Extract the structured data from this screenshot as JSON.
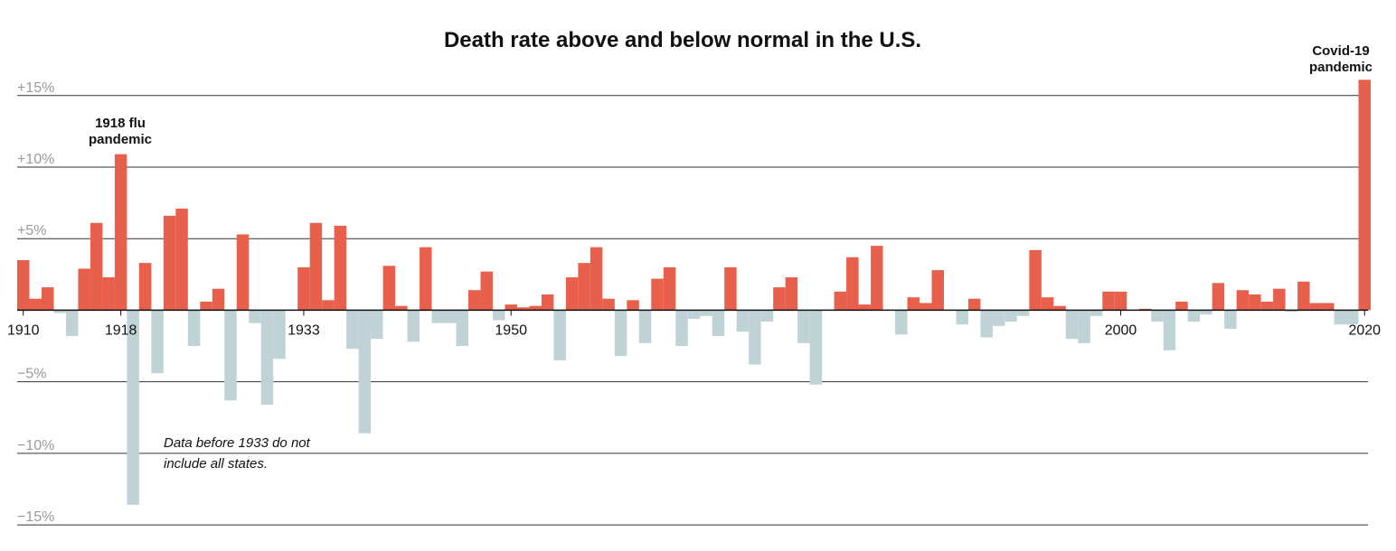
{
  "chart_data": {
    "type": "bar",
    "title": "Death rate above and below normal in the U.S.",
    "annotations": [
      [
        "1918 flu",
        "pandemic"
      ],
      [
        "Covid-19",
        "pandemic"
      ],
      [
        "Data before 1933 do not",
        "include all states."
      ]
    ],
    "x": [
      1910,
      1911,
      1912,
      1913,
      1914,
      1915,
      1916,
      1917,
      1918,
      1919,
      1920,
      1921,
      1922,
      1923,
      1924,
      1925,
      1926,
      1927,
      1928,
      1929,
      1930,
      1931,
      1932,
      1933,
      1934,
      1935,
      1936,
      1937,
      1938,
      1939,
      1940,
      1941,
      1942,
      1943,
      1944,
      1945,
      1946,
      1947,
      1948,
      1949,
      1950,
      1951,
      1952,
      1953,
      1954,
      1955,
      1956,
      1957,
      1958,
      1959,
      1960,
      1961,
      1962,
      1963,
      1964,
      1965,
      1966,
      1967,
      1968,
      1969,
      1970,
      1971,
      1972,
      1973,
      1974,
      1975,
      1976,
      1977,
      1978,
      1979,
      1980,
      1981,
      1982,
      1983,
      1984,
      1985,
      1986,
      1987,
      1988,
      1989,
      1990,
      1991,
      1992,
      1993,
      1994,
      1995,
      1996,
      1997,
      1998,
      1999,
      2000,
      2001,
      2002,
      2003,
      2004,
      2005,
      2006,
      2007,
      2008,
      2009,
      2010,
      2011,
      2012,
      2013,
      2014,
      2015,
      2016,
      2017,
      2018,
      2019,
      2020
    ],
    "values": [
      3.5,
      0.8,
      1.6,
      -0.2,
      -1.8,
      2.9,
      6.1,
      2.3,
      10.9,
      -13.6,
      3.3,
      -4.4,
      6.6,
      7.1,
      -2.5,
      0.6,
      1.5,
      -6.3,
      5.3,
      -0.9,
      -6.6,
      -3.4,
      0,
      3.0,
      6.1,
      0.7,
      5.9,
      -2.7,
      -8.6,
      -2.0,
      3.1,
      0.3,
      -2.2,
      4.4,
      -0.9,
      -0.9,
      -2.5,
      1.4,
      2.7,
      -0.7,
      0.4,
      0.2,
      0.3,
      1.1,
      -3.5,
      2.3,
      3.3,
      4.4,
      0.8,
      -3.2,
      0.7,
      -2.3,
      2.2,
      3.0,
      -2.5,
      -0.6,
      -0.4,
      -1.8,
      3.0,
      -1.5,
      -3.8,
      -0.8,
      1.6,
      2.3,
      -2.3,
      -5.2,
      0,
      1.3,
      3.7,
      0.4,
      4.5,
      0,
      -1.7,
      0.9,
      0.5,
      2.8,
      0,
      -1.0,
      0.8,
      -1.9,
      -1.1,
      -0.8,
      -0.4,
      4.2,
      0.9,
      0.3,
      -2.0,
      -2.3,
      -0.4,
      1.3,
      1.3,
      0,
      0.1,
      -0.8,
      -2.8,
      0.6,
      -0.8,
      -0.3,
      1.9,
      -1.3,
      1.4,
      1.1,
      0.6,
      1.5,
      -0.1,
      2.0,
      0.5,
      0.5,
      -1.0,
      -1.0,
      16.1
    ],
    "colors": {
      "positive": "#e8604c",
      "negative": "#bfd3d6"
    },
    "xlim": [
      1909.5,
      2020.5
    ],
    "xticks": [
      1910,
      1918,
      1933,
      1950,
      2000,
      2020
    ],
    "ylim": [
      -15.5,
      16.5
    ],
    "yticks": [
      {
        "value": 15,
        "label": "+15%"
      },
      {
        "value": 10,
        "label": "+10%"
      },
      {
        "value": 5,
        "label": "+5%"
      },
      {
        "value": -5,
        "label": "−5%"
      },
      {
        "value": -10,
        "label": "−10%"
      },
      {
        "value": -15,
        "label": "−15%"
      }
    ],
    "grid": true
  }
}
